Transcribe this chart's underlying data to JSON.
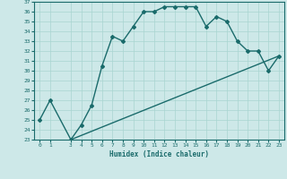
{
  "xlabel": "Humidex (Indice chaleur)",
  "xlim": [
    -0.5,
    23.5
  ],
  "ylim": [
    23,
    37
  ],
  "xticks": [
    0,
    1,
    3,
    4,
    5,
    6,
    7,
    8,
    9,
    10,
    11,
    12,
    13,
    14,
    15,
    16,
    17,
    18,
    19,
    20,
    21,
    22,
    23
  ],
  "yticks": [
    23,
    24,
    25,
    26,
    27,
    28,
    29,
    30,
    31,
    32,
    33,
    34,
    35,
    36,
    37
  ],
  "background_color": "#cde8e8",
  "line_color": "#1a6b6b",
  "grid_color": "#a8d5d0",
  "curve1_x": [
    0,
    1,
    3,
    4,
    5,
    6,
    7,
    8,
    9,
    10,
    11,
    12,
    13,
    14,
    15,
    16,
    17,
    18,
    19,
    20,
    21,
    22,
    23
  ],
  "curve1_y": [
    25.0,
    27.0,
    23.0,
    24.5,
    26.5,
    30.5,
    33.5,
    33.0,
    34.5,
    36.0,
    36.0,
    36.5,
    36.5,
    36.5,
    36.5,
    34.5,
    35.5,
    35.0,
    33.0,
    32.0,
    32.0,
    30.0,
    31.5
  ],
  "curve2_x": [
    3,
    23
  ],
  "curve2_y": [
    23.0,
    31.5
  ],
  "marker": "D",
  "marker_size": 2.0,
  "line_width": 1.0
}
